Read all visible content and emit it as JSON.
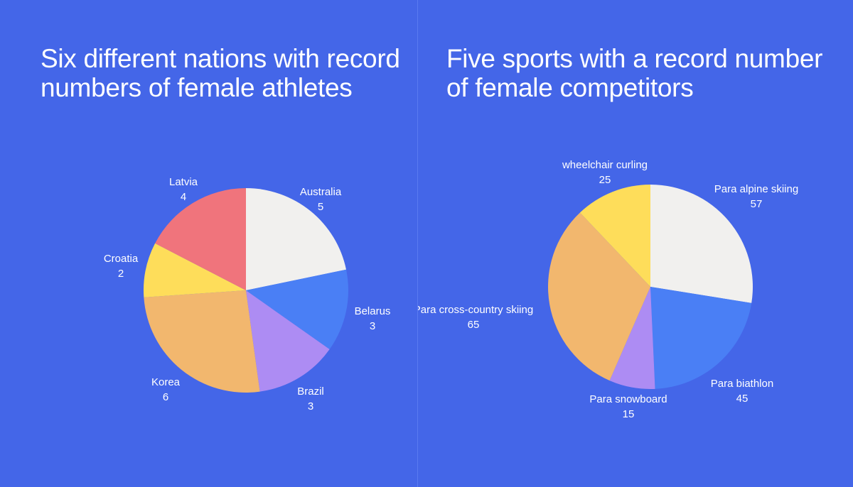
{
  "chart_data": [
    {
      "type": "pie",
      "title": "Six different nations with record numbers of female athletes",
      "slices": [
        {
          "label": "Australia",
          "value": 5,
          "color": "#f1f0ee"
        },
        {
          "label": "Belarus",
          "value": 3,
          "color": "#4a7ff5"
        },
        {
          "label": "Brazil",
          "value": 3,
          "color": "#ad8cf3"
        },
        {
          "label": "Korea",
          "value": 6,
          "color": "#f2b76e"
        },
        {
          "label": "Croatia",
          "value": 2,
          "color": "#fedd5a"
        },
        {
          "label": "Latvia",
          "value": 4,
          "color": "#f0747c"
        }
      ]
    },
    {
      "type": "pie",
      "title": "Five sports with a record number of female competitors",
      "slices": [
        {
          "label": "Para alpine skiing",
          "value": 57,
          "color": "#f1f0ee"
        },
        {
          "label": "Para biathlon",
          "value": 45,
          "color": "#4a7ff5"
        },
        {
          "label": "Para snowboard",
          "value": 15,
          "color": "#ad8cf3"
        },
        {
          "label": "Para cross-country skiing",
          "value": 65,
          "color": "#f2b76e"
        },
        {
          "label": "wheelchair curling",
          "value": 25,
          "color": "#fedd5a"
        }
      ]
    }
  ]
}
